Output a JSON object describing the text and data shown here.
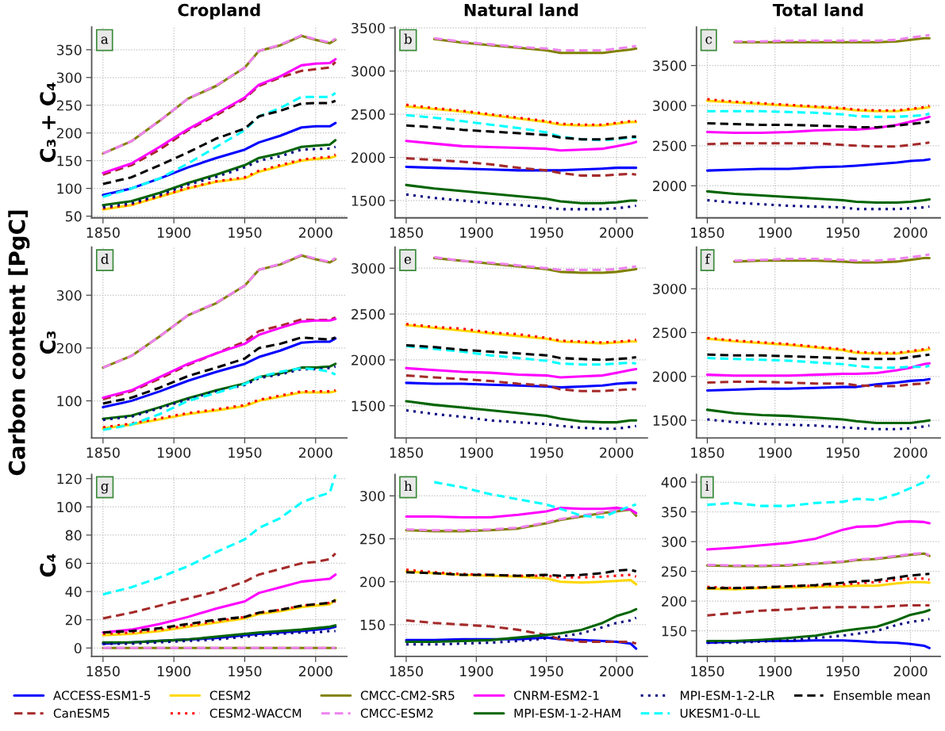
{
  "chart_data": [
    {
      "type": "line",
      "title": "Cropland",
      "ylabel": "C₃ + C₄",
      "annotations": [
        "a"
      ],
      "legend": "bottom",
      "grid": true,
      "xlim": [
        1842,
        2022
      ],
      "xticks": [
        1850,
        1900,
        1950,
        2000
      ],
      "ylim": [
        47,
        391
      ],
      "yticks": [
        50,
        100,
        150,
        200,
        250,
        300,
        350
      ],
      "x": [
        1850,
        1870,
        1890,
        1910,
        1930,
        1950,
        1960,
        1975,
        1990,
        2000,
        2010,
        2014
      ],
      "series": [
        {
          "name": "ACCESS-ESM1-5",
          "color": "#0000ff",
          "line_style": "solid",
          "values": [
            88,
            100,
            118,
            138,
            155,
            170,
            183,
            195,
            210,
            212,
            212,
            218
          ]
        },
        {
          "name": "CanESM5",
          "color": "#a52a2a",
          "line_style": "dashed",
          "values": [
            125,
            142,
            170,
            205,
            232,
            262,
            285,
            300,
            312,
            315,
            318,
            328
          ]
        },
        {
          "name": "CESM2",
          "color": "#ffd700",
          "line_style": "solid",
          "values": [
            62,
            70,
            85,
            100,
            112,
            118,
            130,
            140,
            150,
            153,
            155,
            158
          ]
        },
        {
          "name": "CESM2-WACCM",
          "color": "#ff0000",
          "line_style": "dotted",
          "values": [
            64,
            71,
            86,
            101,
            113,
            120,
            132,
            142,
            152,
            155,
            157,
            161
          ]
        },
        {
          "name": "CMCC-CM2-SR5",
          "color": "#808000",
          "line_style": "solid",
          "values": [
            163,
            185,
            222,
            262,
            285,
            318,
            348,
            358,
            375,
            368,
            362,
            368
          ]
        },
        {
          "name": "CMCC-ESM2",
          "color": "#ee82ee",
          "line_style": "dashed",
          "values": [
            163,
            185,
            222,
            262,
            286,
            318,
            348,
            359,
            376,
            369,
            363,
            370
          ]
        },
        {
          "name": "CNRM-ESM2-1",
          "color": "#ff00ff",
          "line_style": "solid",
          "values": [
            128,
            145,
            175,
            207,
            235,
            264,
            287,
            302,
            322,
            325,
            326,
            333
          ]
        },
        {
          "name": "MPI-ESM-1-2-HAM",
          "color": "#006400",
          "line_style": "solid",
          "values": [
            70,
            77,
            92,
            110,
            125,
            142,
            155,
            163,
            175,
            177,
            179,
            187
          ]
        },
        {
          "name": "MPI-ESM-1-2-LR",
          "color": "#000080",
          "line_style": "dotted",
          "values": [
            66,
            73,
            88,
            107,
            121,
            138,
            150,
            158,
            170,
            171,
            172,
            175
          ]
        },
        {
          "name": "UKESM1-0-LL",
          "color": "#00ffff",
          "line_style": "dashed",
          "values": [
            85,
            100,
            118,
            145,
            175,
            205,
            230,
            245,
            265,
            265,
            265,
            272
          ]
        },
        {
          "name": "Ensemble mean",
          "color": "#000000",
          "line_style": "dashed",
          "values": [
            108,
            120,
            142,
            165,
            190,
            208,
            230,
            240,
            253,
            254,
            254,
            258
          ]
        }
      ]
    },
    {
      "type": "line",
      "title": "Natural land",
      "annotations": [
        "b"
      ],
      "grid": true,
      "xlim": [
        1842,
        2022
      ],
      "xticks": [
        1850,
        1900,
        1950,
        2000
      ],
      "ylim": [
        1300,
        3510
      ],
      "yticks": [
        1500,
        2000,
        2500,
        3000,
        3500
      ],
      "x": [
        1850,
        1870,
        1890,
        1910,
        1930,
        1950,
        1960,
        1975,
        1990,
        2000,
        2010,
        2014
      ],
      "series": [
        {
          "color": "#0000ff",
          "line_style": "solid",
          "values": [
            1890,
            1880,
            1870,
            1860,
            1850,
            1850,
            1850,
            1860,
            1870,
            1880,
            1880,
            1880
          ]
        },
        {
          "color": "#a52a2a",
          "line_style": "dashed",
          "values": [
            1990,
            1970,
            1950,
            1920,
            1880,
            1850,
            1820,
            1790,
            1790,
            1800,
            1810,
            1800
          ]
        },
        {
          "color": "#ffd700",
          "line_style": "solid",
          "values": [
            2590,
            2560,
            2530,
            2490,
            2450,
            2410,
            2380,
            2370,
            2370,
            2390,
            2410,
            2410
          ]
        },
        {
          "color": "#ff0000",
          "line_style": "dotted",
          "values": [
            2610,
            2570,
            2540,
            2500,
            2460,
            2420,
            2390,
            2380,
            2380,
            2400,
            2420,
            2420
          ]
        },
        {
          "color": "#808000",
          "line_style": "solid",
          "values": [
            null,
            3370,
            3330,
            3300,
            3270,
            3240,
            3210,
            3210,
            3210,
            3230,
            3250,
            3260
          ]
        },
        {
          "color": "#ee82ee",
          "line_style": "dashed",
          "values": [
            null,
            3380,
            3340,
            3310,
            3280,
            3260,
            3240,
            3240,
            3240,
            3260,
            3280,
            3290
          ]
        },
        {
          "color": "#ff00ff",
          "line_style": "solid",
          "values": [
            2190,
            2160,
            2130,
            2120,
            2110,
            2100,
            2080,
            2090,
            2100,
            2130,
            2160,
            2180
          ]
        },
        {
          "color": "#006400",
          "line_style": "solid",
          "values": [
            1680,
            1640,
            1610,
            1580,
            1550,
            1520,
            1490,
            1470,
            1470,
            1480,
            1500,
            1500
          ]
        },
        {
          "color": "#000080",
          "line_style": "dotted",
          "values": [
            1570,
            1530,
            1500,
            1470,
            1450,
            1420,
            1400,
            1400,
            1400,
            1410,
            1430,
            1440
          ]
        },
        {
          "color": "#00ffff",
          "line_style": "dashed",
          "values": [
            2490,
            2460,
            2420,
            2380,
            2340,
            2290,
            2240,
            2210,
            2200,
            2210,
            2230,
            2230
          ]
        },
        {
          "color": "#000000",
          "line_style": "dashed",
          "values": [
            2370,
            2350,
            2320,
            2300,
            2280,
            2260,
            2230,
            2210,
            2210,
            2220,
            2240,
            2240
          ]
        }
      ]
    },
    {
      "type": "line",
      "title": "Total land",
      "annotations": [
        "c"
      ],
      "grid": true,
      "xlim": [
        1842,
        2022
      ],
      "xticks": [
        1850,
        1900,
        1950,
        2000
      ],
      "ylim": [
        1600,
        3980
      ],
      "yticks": [
        2000,
        2500,
        3000,
        3500
      ],
      "x": [
        1850,
        1870,
        1890,
        1910,
        1930,
        1950,
        1960,
        1975,
        1990,
        2000,
        2010,
        2014
      ],
      "series": [
        {
          "color": "#0000ff",
          "line_style": "solid",
          "values": [
            2190,
            2200,
            2210,
            2210,
            2230,
            2240,
            2250,
            2270,
            2290,
            2310,
            2320,
            2330
          ]
        },
        {
          "color": "#a52a2a",
          "line_style": "dashed",
          "values": [
            2520,
            2530,
            2530,
            2530,
            2530,
            2510,
            2500,
            2490,
            2490,
            2510,
            2530,
            2540
          ]
        },
        {
          "color": "#ffd700",
          "line_style": "solid",
          "values": [
            3060,
            3040,
            3020,
            3000,
            2980,
            2960,
            2940,
            2930,
            2930,
            2950,
            2970,
            2980
          ]
        },
        {
          "color": "#ff0000",
          "line_style": "dotted",
          "values": [
            3080,
            3050,
            3030,
            3010,
            2990,
            2970,
            2950,
            2940,
            2940,
            2960,
            2980,
            3000
          ]
        },
        {
          "color": "#808000",
          "line_style": "solid",
          "values": [
            null,
            3790,
            3790,
            3790,
            3790,
            3790,
            3790,
            3790,
            3800,
            3820,
            3840,
            3840
          ]
        },
        {
          "color": "#ee82ee",
          "line_style": "dashed",
          "values": [
            null,
            3800,
            3800,
            3810,
            3810,
            3810,
            3810,
            3810,
            3820,
            3850,
            3870,
            3880
          ]
        },
        {
          "color": "#ff00ff",
          "line_style": "solid",
          "values": [
            2670,
            2660,
            2660,
            2670,
            2690,
            2700,
            2700,
            2720,
            2760,
            2800,
            2840,
            2860
          ]
        },
        {
          "color": "#006400",
          "line_style": "solid",
          "values": [
            1930,
            1900,
            1880,
            1860,
            1840,
            1820,
            1800,
            1790,
            1790,
            1800,
            1820,
            1830
          ]
        },
        {
          "color": "#000080",
          "line_style": "dotted",
          "values": [
            1820,
            1790,
            1770,
            1750,
            1740,
            1730,
            1710,
            1710,
            1710,
            1720,
            1730,
            1740
          ]
        },
        {
          "color": "#00ffff",
          "line_style": "dashed",
          "values": [
            2930,
            2930,
            2930,
            2920,
            2910,
            2890,
            2870,
            2860,
            2860,
            2870,
            2880,
            2900
          ]
        },
        {
          "color": "#000000",
          "line_style": "dashed",
          "values": [
            2780,
            2770,
            2760,
            2760,
            2750,
            2740,
            2730,
            2730,
            2750,
            2770,
            2790,
            2800
          ]
        }
      ]
    },
    {
      "type": "line",
      "ylabel": "C₃",
      "annotations": [
        "d",
        "Carbon content [PgC]"
      ],
      "grid": true,
      "xlim": [
        1842,
        2022
      ],
      "xticks": [
        1850,
        1900,
        1950,
        2000
      ],
      "ylim": [
        30,
        391
      ],
      "yticks": [
        100,
        200,
        300
      ],
      "x": [
        1850,
        1870,
        1890,
        1910,
        1930,
        1950,
        1960,
        1975,
        1990,
        2000,
        2010,
        2014
      ],
      "series": [
        {
          "color": "#0000ff",
          "line_style": "solid",
          "values": [
            88,
            100,
            118,
            138,
            155,
            170,
            183,
            195,
            210,
            212,
            212,
            218
          ]
        },
        {
          "color": "#a52a2a",
          "line_style": "dashed",
          "values": [
            103,
            118,
            142,
            168,
            190,
            212,
            232,
            242,
            254,
            253,
            253,
            258
          ]
        },
        {
          "color": "#ffd700",
          "line_style": "solid",
          "values": [
            48,
            55,
            65,
            75,
            82,
            90,
            100,
            108,
            116,
            116,
            116,
            118
          ]
        },
        {
          "color": "#ff0000",
          "line_style": "dotted",
          "values": [
            50,
            57,
            67,
            77,
            84,
            92,
            102,
            110,
            118,
            118,
            118,
            120
          ]
        },
        {
          "color": "#808000",
          "line_style": "solid",
          "values": [
            163,
            185,
            222,
            262,
            285,
            318,
            348,
            358,
            375,
            368,
            362,
            368
          ]
        },
        {
          "color": "#ee82ee",
          "line_style": "dashed",
          "values": [
            163,
            185,
            222,
            262,
            286,
            318,
            348,
            359,
            376,
            369,
            363,
            370
          ]
        },
        {
          "color": "#ff00ff",
          "line_style": "solid",
          "values": [
            106,
            120,
            145,
            170,
            190,
            208,
            225,
            238,
            250,
            252,
            252,
            255
          ]
        },
        {
          "color": "#006400",
          "line_style": "solid",
          "values": [
            66,
            72,
            88,
            105,
            120,
            133,
            145,
            152,
            163,
            163,
            165,
            170
          ]
        },
        {
          "color": "#000080",
          "line_style": "dotted",
          "values": [
            64,
            70,
            86,
            103,
            118,
            130,
            143,
            150,
            160,
            160,
            162,
            165
          ]
        },
        {
          "color": "#00ffff",
          "line_style": "dashed",
          "values": [
            45,
            55,
            75,
            100,
            115,
            132,
            145,
            155,
            162,
            160,
            155,
            150
          ]
        },
        {
          "color": "#000000",
          "line_style": "dashed",
          "values": [
            95,
            106,
            125,
            147,
            163,
            180,
            200,
            208,
            220,
            218,
            216,
            220
          ]
        }
      ]
    },
    {
      "type": "line",
      "annotations": [
        "e"
      ],
      "grid": true,
      "xlim": [
        1842,
        2022
      ],
      "xticks": [
        1850,
        1900,
        1950,
        2000
      ],
      "ylim": [
        1150,
        3230
      ],
      "yticks": [
        1500,
        2000,
        2500,
        3000
      ],
      "x": [
        1850,
        1870,
        1890,
        1910,
        1930,
        1950,
        1960,
        1975,
        1990,
        2000,
        2010,
        2014
      ],
      "series": [
        {
          "color": "#0000ff",
          "line_style": "solid",
          "values": [
            1750,
            1740,
            1740,
            1730,
            1720,
            1710,
            1700,
            1710,
            1720,
            1740,
            1750,
            1750
          ]
        },
        {
          "color": "#a52a2a",
          "line_style": "dashed",
          "values": [
            1830,
            1810,
            1790,
            1770,
            1740,
            1720,
            1680,
            1660,
            1660,
            1670,
            1680,
            1680
          ]
        },
        {
          "color": "#ffd700",
          "line_style": "solid",
          "values": [
            2380,
            2350,
            2320,
            2290,
            2260,
            2230,
            2200,
            2190,
            2180,
            2190,
            2200,
            2200
          ]
        },
        {
          "color": "#ff0000",
          "line_style": "dotted",
          "values": [
            2390,
            2360,
            2340,
            2300,
            2280,
            2240,
            2210,
            2200,
            2190,
            2200,
            2210,
            2220
          ]
        },
        {
          "color": "#808000",
          "line_style": "solid",
          "values": [
            null,
            3110,
            3080,
            3050,
            3020,
            2990,
            2960,
            2950,
            2950,
            2960,
            2980,
            2990
          ]
        },
        {
          "color": "#ee82ee",
          "line_style": "dashed",
          "values": [
            null,
            3120,
            3080,
            3060,
            3030,
            3000,
            2980,
            2980,
            2980,
            2990,
            3010,
            3020
          ]
        },
        {
          "color": "#ff00ff",
          "line_style": "solid",
          "values": [
            1910,
            1890,
            1870,
            1860,
            1840,
            1830,
            1810,
            1820,
            1830,
            1860,
            1890,
            1900
          ]
        },
        {
          "color": "#006400",
          "line_style": "solid",
          "values": [
            1550,
            1510,
            1480,
            1450,
            1420,
            1390,
            1360,
            1330,
            1320,
            1320,
            1340,
            1340
          ]
        },
        {
          "color": "#000080",
          "line_style": "dotted",
          "values": [
            1450,
            1410,
            1380,
            1340,
            1320,
            1300,
            1280,
            1260,
            1250,
            1250,
            1270,
            1280
          ]
        },
        {
          "color": "#00ffff",
          "line_style": "dashed",
          "values": [
            2150,
            2120,
            2090,
            2050,
            2020,
            1990,
            1960,
            1950,
            1950,
            1960,
            1970,
            1960
          ]
        },
        {
          "color": "#000000",
          "line_style": "dashed",
          "values": [
            2160,
            2140,
            2110,
            2090,
            2070,
            2050,
            2020,
            2010,
            2000,
            2010,
            2020,
            2030
          ]
        }
      ]
    },
    {
      "type": "line",
      "annotations": [
        "f"
      ],
      "grid": true,
      "xlim": [
        1842,
        2022
      ],
      "xticks": [
        1850,
        1900,
        1950,
        2000
      ],
      "ylim": [
        1300,
        3475
      ],
      "yticks": [
        1500,
        2000,
        2500,
        3000
      ],
      "x": [
        1850,
        1870,
        1890,
        1910,
        1930,
        1950,
        1960,
        1975,
        1990,
        2000,
        2010,
        2014
      ],
      "series": [
        {
          "color": "#0000ff",
          "line_style": "solid",
          "values": [
            1840,
            1850,
            1860,
            1860,
            1870,
            1880,
            1880,
            1910,
            1930,
            1950,
            1960,
            1970
          ]
        },
        {
          "color": "#a52a2a",
          "line_style": "dashed",
          "values": [
            1930,
            1940,
            1940,
            1930,
            1920,
            1920,
            1900,
            1890,
            1890,
            1910,
            1920,
            1930
          ]
        },
        {
          "color": "#ffd700",
          "line_style": "solid",
          "values": [
            2430,
            2400,
            2380,
            2360,
            2330,
            2300,
            2270,
            2260,
            2260,
            2280,
            2300,
            2310
          ]
        },
        {
          "color": "#ff0000",
          "line_style": "dotted",
          "values": [
            2440,
            2410,
            2390,
            2370,
            2340,
            2310,
            2280,
            2270,
            2270,
            2290,
            2310,
            2330
          ]
        },
        {
          "color": "#808000",
          "line_style": "solid",
          "values": [
            null,
            3310,
            3320,
            3320,
            3320,
            3310,
            3300,
            3300,
            3310,
            3330,
            3350,
            3350
          ]
        },
        {
          "color": "#ee82ee",
          "line_style": "dashed",
          "values": [
            null,
            3320,
            3330,
            3340,
            3340,
            3330,
            3320,
            3320,
            3340,
            3360,
            3380,
            3390
          ]
        },
        {
          "color": "#ff00ff",
          "line_style": "solid",
          "values": [
            2020,
            2010,
            2010,
            2010,
            2020,
            2030,
            2030,
            2040,
            2070,
            2100,
            2140,
            2150
          ]
        },
        {
          "color": "#006400",
          "line_style": "solid",
          "values": [
            1620,
            1580,
            1560,
            1550,
            1530,
            1510,
            1490,
            1470,
            1470,
            1470,
            1490,
            1500
          ]
        },
        {
          "color": "#000080",
          "line_style": "dotted",
          "values": [
            1510,
            1480,
            1460,
            1450,
            1440,
            1420,
            1410,
            1400,
            1400,
            1410,
            1430,
            1440
          ]
        },
        {
          "color": "#00ffff",
          "line_style": "dashed",
          "values": [
            2210,
            2200,
            2190,
            2180,
            2160,
            2140,
            2120,
            2100,
            2100,
            2110,
            2110,
            2120
          ]
        },
        {
          "color": "#000000",
          "line_style": "dashed",
          "values": [
            2250,
            2240,
            2240,
            2230,
            2220,
            2210,
            2200,
            2200,
            2200,
            2220,
            2240,
            2250
          ]
        }
      ]
    },
    {
      "type": "line",
      "ylabel": "C₄",
      "annotations": [
        "g"
      ],
      "grid": true,
      "xlim": [
        1842,
        2022
      ],
      "xticks": [
        1850,
        1900,
        1950,
        2000
      ],
      "ylim": [
        -6,
        123
      ],
      "yticks": [
        0,
        20,
        40,
        60,
        80,
        100,
        120
      ],
      "x": [
        1850,
        1870,
        1890,
        1910,
        1930,
        1950,
        1960,
        1975,
        1990,
        2000,
        2010,
        2014
      ],
      "series": [
        {
          "color": "#0000ff",
          "line_style": "solid",
          "values": [
            3,
            4,
            5,
            6,
            7,
            9,
            10,
            11,
            12,
            13,
            14,
            15
          ]
        },
        {
          "color": "#a52a2a",
          "line_style": "dashed",
          "values": [
            21,
            25,
            30,
            35,
            40,
            47,
            52,
            56,
            60,
            61,
            63,
            67
          ]
        },
        {
          "color": "#ffd700",
          "line_style": "solid",
          "values": [
            9,
            10,
            12,
            15,
            18,
            21,
            24,
            26,
            29,
            30,
            31,
            34
          ]
        },
        {
          "color": "#ff0000",
          "line_style": "dotted",
          "values": [
            10,
            11,
            13,
            16,
            19,
            22,
            25,
            27,
            30,
            31,
            32,
            33
          ]
        },
        {
          "color": "#808000",
          "line_style": "solid",
          "values": [
            0,
            0,
            0,
            0,
            0,
            0,
            0,
            0,
            0,
            0,
            0,
            0
          ]
        },
        {
          "color": "#ee82ee",
          "line_style": "dashed",
          "values": [
            0,
            0,
            0,
            0,
            0,
            0,
            0,
            0,
            0,
            0,
            0,
            0
          ]
        },
        {
          "color": "#ff00ff",
          "line_style": "solid",
          "values": [
            11,
            13,
            17,
            22,
            28,
            33,
            39,
            43,
            47,
            48,
            49,
            52
          ]
        },
        {
          "color": "#006400",
          "line_style": "solid",
          "values": [
            4,
            4,
            5,
            6,
            8,
            10,
            11,
            12,
            13,
            14,
            15,
            16
          ]
        },
        {
          "color": "#000080",
          "line_style": "dotted",
          "values": [
            3,
            3,
            4,
            5,
            6,
            8,
            9,
            10,
            11,
            11,
            12,
            12
          ]
        },
        {
          "color": "#00ffff",
          "line_style": "dashed",
          "values": [
            38,
            43,
            50,
            58,
            68,
            77,
            85,
            92,
            103,
            107,
            110,
            123
          ]
        },
        {
          "color": "#000000",
          "line_style": "dashed",
          "values": [
            11,
            12,
            14,
            17,
            20,
            22,
            25,
            27,
            30,
            31,
            32,
            34
          ]
        }
      ]
    },
    {
      "type": "line",
      "annotations": [
        "h"
      ],
      "grid": true,
      "xlim": [
        1842,
        2022
      ],
      "xticks": [
        1850,
        1900,
        1950,
        2000
      ],
      "ylim": [
        113,
        325
      ],
      "yticks": [
        150,
        200,
        250,
        300
      ],
      "x": [
        1850,
        1870,
        1890,
        1910,
        1930,
        1950,
        1960,
        1975,
        1990,
        2000,
        2010,
        2014
      ],
      "series": [
        {
          "color": "#0000ff",
          "line_style": "solid",
          "values": [
            132,
            132,
            133,
            133,
            133,
            135,
            133,
            132,
            131,
            130,
            128,
            122
          ]
        },
        {
          "color": "#a52a2a",
          "line_style": "dashed",
          "values": [
            155,
            152,
            150,
            148,
            144,
            138,
            133,
            130,
            130,
            130,
            130,
            128
          ]
        },
        {
          "color": "#ffd700",
          "line_style": "solid",
          "values": [
            212,
            210,
            208,
            207,
            206,
            204,
            200,
            199,
            200,
            201,
            202,
            197
          ]
        },
        {
          "color": "#ff0000",
          "line_style": "dotted",
          "values": [
            214,
            211,
            209,
            208,
            207,
            207,
            205,
            205,
            206,
            207,
            208,
            206
          ]
        },
        {
          "color": "#808000",
          "line_style": "solid",
          "values": [
            260,
            259,
            259,
            260,
            262,
            268,
            272,
            276,
            280,
            282,
            284,
            277
          ]
        },
        {
          "color": "#ee82ee",
          "line_style": "dashed",
          "values": [
            261,
            260,
            260,
            261,
            263,
            269,
            273,
            277,
            281,
            283,
            285,
            279
          ]
        },
        {
          "color": "#ff00ff",
          "line_style": "solid",
          "values": [
            276,
            276,
            275,
            275,
            278,
            282,
            286,
            285,
            285,
            286,
            284,
            280
          ]
        },
        {
          "color": "#006400",
          "line_style": "solid",
          "values": [
            130,
            130,
            131,
            132,
            135,
            138,
            140,
            144,
            152,
            160,
            165,
            168
          ]
        },
        {
          "color": "#000080",
          "line_style": "dotted",
          "values": [
            127,
            127,
            128,
            129,
            131,
            134,
            136,
            140,
            147,
            152,
            155,
            158
          ]
        },
        {
          "color": "#00ffff",
          "line_style": "dashed",
          "values": [
            null,
            316,
            310,
            302,
            296,
            290,
            285,
            277,
            275,
            282,
            288,
            290
          ]
        },
        {
          "color": "#000000",
          "line_style": "dashed",
          "values": [
            211,
            210,
            208,
            208,
            207,
            208,
            207,
            208,
            210,
            213,
            214,
            212
          ]
        }
      ]
    },
    {
      "type": "line",
      "annotations": [
        "i"
      ],
      "grid": true,
      "xlim": [
        1842,
        2022
      ],
      "xticks": [
        1850,
        1900,
        1950,
        2000
      ],
      "ylim": [
        107,
        413
      ],
      "yticks": [
        150,
        200,
        250,
        300,
        350,
        400
      ],
      "x": [
        1850,
        1870,
        1890,
        1910,
        1930,
        1950,
        1960,
        1975,
        1990,
        2000,
        2010,
        2014
      ],
      "series": [
        {
          "color": "#0000ff",
          "line_style": "solid",
          "values": [
            130,
            132,
            133,
            133,
            134,
            134,
            133,
            131,
            130,
            128,
            125,
            121
          ]
        },
        {
          "color": "#a52a2a",
          "line_style": "dashed",
          "values": [
            176,
            180,
            184,
            186,
            189,
            190,
            190,
            190,
            192,
            193,
            193,
            193
          ]
        },
        {
          "color": "#ffd700",
          "line_style": "solid",
          "values": [
            221,
            220,
            222,
            223,
            224,
            225,
            226,
            226,
            230,
            232,
            232,
            231
          ]
        },
        {
          "color": "#ff0000",
          "line_style": "dotted",
          "values": [
            224,
            222,
            223,
            225,
            226,
            228,
            230,
            232,
            236,
            238,
            238,
            236
          ]
        },
        {
          "color": "#808000",
          "line_style": "solid",
          "values": [
            260,
            259,
            259,
            260,
            263,
            266,
            269,
            271,
            275,
            278,
            280,
            276
          ]
        },
        {
          "color": "#ee82ee",
          "line_style": "dashed",
          "values": [
            261,
            260,
            260,
            261,
            264,
            267,
            270,
            272,
            276,
            279,
            281,
            277
          ]
        },
        {
          "color": "#ff00ff",
          "line_style": "solid",
          "values": [
            287,
            290,
            294,
            298,
            305,
            320,
            325,
            326,
            333,
            334,
            333,
            331
          ]
        },
        {
          "color": "#006400",
          "line_style": "solid",
          "values": [
            133,
            133,
            135,
            138,
            142,
            150,
            153,
            157,
            168,
            177,
            182,
            185
          ]
        },
        {
          "color": "#000080",
          "line_style": "dotted",
          "values": [
            130,
            130,
            132,
            134,
            138,
            142,
            145,
            150,
            160,
            165,
            168,
            170
          ]
        },
        {
          "color": "#00ffff",
          "line_style": "dashed",
          "values": [
            362,
            365,
            360,
            360,
            365,
            367,
            372,
            370,
            380,
            390,
            400,
            412
          ]
        },
        {
          "color": "#000000",
          "line_style": "dashed",
          "values": [
            222,
            222,
            223,
            225,
            227,
            231,
            233,
            235,
            240,
            243,
            245,
            246
          ]
        }
      ]
    }
  ]
}
